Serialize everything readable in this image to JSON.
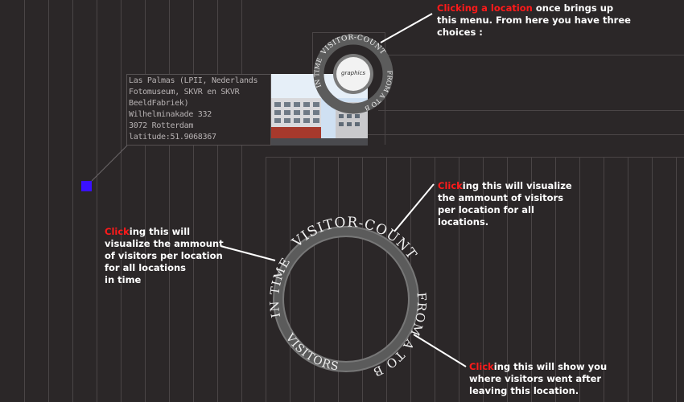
{
  "location_info": {
    "lines": [
      "Las Palmas  (LPII, Nederlands",
      "Fotomuseum, SKVR en SKVR",
      "BeeldFabriek)",
      "Wilhelminakade 332",
      "3072 Rotterdam",
      "latitude:51.9068367"
    ]
  },
  "small_menu": {
    "top_label": "VISITOR-COUNT",
    "right_label": "FROM A TO B",
    "left_label": "IN TIME",
    "bottom_label": "VISITORS",
    "center_label": "graphics"
  },
  "menu": {
    "top_label": "VISITOR-COUNT",
    "right_label": "FROM A TO B",
    "left_label": "IN TIME",
    "bottom_label": "VISITORS"
  },
  "annotations": {
    "menu_intro": {
      "highlight": "Clicking a location",
      "lines": [
        " once brings up",
        "this menu. From here you have three",
        "choices :"
      ]
    },
    "visitor_count": {
      "highlight": "Click",
      "lines": [
        "ing this will visualize",
        "the ammount of visitors",
        "per location for all",
        "locations."
      ]
    },
    "in_time": {
      "highlight": "Click",
      "lines": [
        "ing this will",
        "visualize the ammount",
        "of visitors per location",
        "for all locations",
        "in time"
      ]
    },
    "from_a_to_b": {
      "highlight": "Click",
      "lines": [
        "ing this will show you",
        "where visitors went after",
        "leaving this location."
      ]
    }
  },
  "colors": {
    "background": "#2b2728",
    "highlight": "#ff1a1a",
    "marker": "#3a10ff",
    "ring": "#666666",
    "ring_text": "#f0f0f0"
  }
}
